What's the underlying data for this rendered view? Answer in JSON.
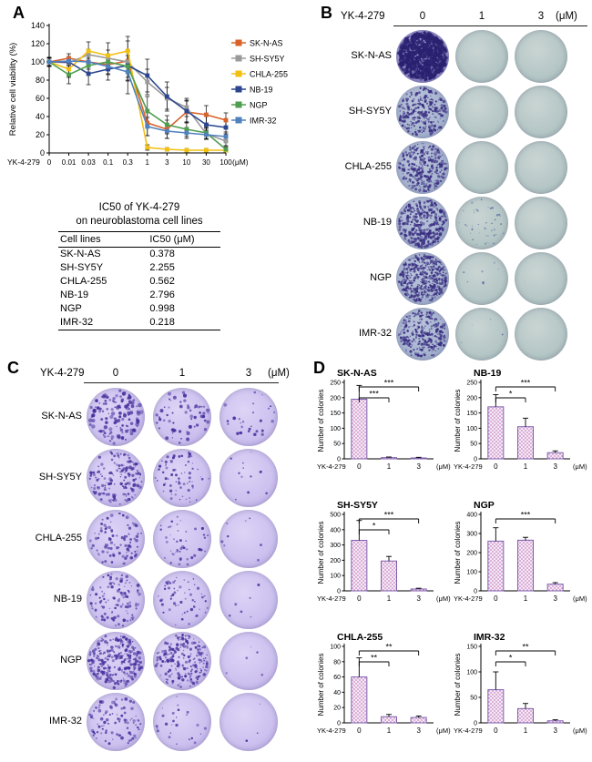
{
  "panels": {
    "A": {
      "label": "A",
      "table": {
        "title_line1": "IC50 of YK-4-279",
        "title_line2": "on neuroblastoma cell lines",
        "col_headers": [
          "Cell lines",
          "IC50 (μM)"
        ],
        "rows": [
          {
            "cell_line": "SK-N-AS",
            "ic50": "0.378"
          },
          {
            "cell_line": "SH-SY5Y",
            "ic50": "2.255"
          },
          {
            "cell_line": "CHLA-255",
            "ic50": "0.562"
          },
          {
            "cell_line": "NB-19",
            "ic50": "2.796"
          },
          {
            "cell_line": "NGP",
            "ic50": "0.998"
          },
          {
            "cell_line": "IMR-32",
            "ic50": "0.218"
          }
        ]
      }
    },
    "B": {
      "label": "B",
      "header": {
        "drug": "YK-4-279",
        "doses": [
          "0",
          "1",
          "3"
        ],
        "unit": "(μM)"
      },
      "rows": [
        {
          "cell_line": "SK-N-AS",
          "plates": [
            {
              "style": "dense_dark",
              "dots": 1100,
              "dot_size": 2.0
            },
            {
              "style": "pale",
              "dots": 0,
              "dot_size": 1
            },
            {
              "style": "pale",
              "dots": 0,
              "dot_size": 1
            }
          ]
        },
        {
          "cell_line": "SH-SY5Y",
          "plates": [
            {
              "style": "stained",
              "dots": 260,
              "dot_size": 1.6
            },
            {
              "style": "pale",
              "dots": 0,
              "dot_size": 1
            },
            {
              "style": "pale",
              "dots": 0,
              "dot_size": 1
            }
          ]
        },
        {
          "cell_line": "CHLA-255",
          "plates": [
            {
              "style": "stained",
              "dots": 300,
              "dot_size": 1.6
            },
            {
              "style": "pale",
              "dots": 0,
              "dot_size": 1
            },
            {
              "style": "pale",
              "dots": 0,
              "dot_size": 1
            }
          ]
        },
        {
          "cell_line": "NB-19",
          "plates": [
            {
              "style": "stained",
              "dots": 340,
              "dot_size": 1.7
            },
            {
              "style": "pale",
              "dots": 45,
              "dot_size": 1.2
            },
            {
              "style": "pale",
              "dots": 0,
              "dot_size": 1
            }
          ]
        },
        {
          "cell_line": "NGP",
          "plates": [
            {
              "style": "stained",
              "dots": 650,
              "dot_size": 1.3
            },
            {
              "style": "pale",
              "dots": 8,
              "dot_size": 1.4
            },
            {
              "style": "pale",
              "dots": 0,
              "dot_size": 1
            }
          ]
        },
        {
          "cell_line": "IMR-32",
          "plates": [
            {
              "style": "stained",
              "dots": 300,
              "dot_size": 1.5
            },
            {
              "style": "pale",
              "dots": 4,
              "dot_size": 1.2
            },
            {
              "style": "pale",
              "dots": 0,
              "dot_size": 1
            }
          ]
        }
      ]
    },
    "C": {
      "label": "C",
      "header": {
        "drug": "YK-4-279",
        "doses": [
          "0",
          "1",
          "3"
        ],
        "unit": "(μM)"
      },
      "rows": [
        {
          "cell_line": "SK-N-AS",
          "plates": [
            {
              "style": "lavender",
              "dots": 130,
              "dot_size": 2.2
            },
            {
              "style": "lavender",
              "dots": 60,
              "dot_size": 2.0
            },
            {
              "style": "lavender",
              "dots": 28,
              "dot_size": 1.8
            }
          ]
        },
        {
          "cell_line": "SH-SY5Y",
          "plates": [
            {
              "style": "lavender",
              "dots": 150,
              "dot_size": 1.8
            },
            {
              "style": "lavender",
              "dots": 70,
              "dot_size": 1.6
            },
            {
              "style": "lavender",
              "dots": 12,
              "dot_size": 1.6
            }
          ]
        },
        {
          "cell_line": "CHLA-255",
          "plates": [
            {
              "style": "lavender",
              "dots": 90,
              "dot_size": 1.8
            },
            {
              "style": "lavender",
              "dots": 45,
              "dot_size": 1.6
            },
            {
              "style": "lavender",
              "dots": 8,
              "dot_size": 1.5
            }
          ]
        },
        {
          "cell_line": "NB-19",
          "plates": [
            {
              "style": "lavender",
              "dots": 110,
              "dot_size": 1.8
            },
            {
              "style": "lavender",
              "dots": 55,
              "dot_size": 1.6
            },
            {
              "style": "lavender",
              "dots": 6,
              "dot_size": 1.5
            }
          ]
        },
        {
          "cell_line": "NGP",
          "plates": [
            {
              "style": "lavender",
              "dots": 260,
              "dot_size": 1.8
            },
            {
              "style": "lavender",
              "dots": 210,
              "dot_size": 1.7
            },
            {
              "style": "lavender",
              "dots": 5,
              "dot_size": 1.4
            }
          ]
        },
        {
          "cell_line": "IMR-32",
          "plates": [
            {
              "style": "lavender",
              "dots": 90,
              "dot_size": 1.8
            },
            {
              "style": "lavender",
              "dots": 25,
              "dot_size": 1.6
            },
            {
              "style": "lavender",
              "dots": 3,
              "dot_size": 1.4
            }
          ]
        }
      ]
    },
    "D": {
      "label": "D"
    }
  },
  "plate_styles": {
    "dense_dark": {
      "c1": "#aba7dd",
      "c2": "#938ec9",
      "c3": "#7b75b5",
      "dot": "#2a2170"
    },
    "stained": {
      "c1": "#bac5db",
      "c2": "#a7b4d0",
      "c3": "#8f9dbf",
      "dot": "#372b80"
    },
    "pale": {
      "c1": "#c9d5d3",
      "c2": "#b5c6c6",
      "c3": "#9eb2b4",
      "dot": "#5b6fa5"
    },
    "lavender": {
      "c1": "#ddd4f6",
      "c2": "#ccc0ef",
      "c3": "#b2a0e0",
      "dot": "#46309c"
    }
  },
  "chart_data": [
    {
      "type": "line",
      "panel": "A",
      "title": "",
      "xlabel": "YK-4-279 (μM)",
      "x_drug_label": "YK-4-279",
      "x_unit": "(μM)",
      "ylabel": "Relative cell viability (%)",
      "x_tick_labels": [
        "0",
        "0.01",
        "0.03",
        "0.1",
        "0.3",
        "1",
        "3",
        "10",
        "30",
        "100"
      ],
      "ylim": [
        0,
        140
      ],
      "yticks": [
        0,
        20,
        40,
        60,
        80,
        100,
        120,
        140
      ],
      "legend_position": "right",
      "series": [
        {
          "name": "SK-N-AS",
          "color": "#d9622b",
          "values": [
            100,
            104,
            100,
            97,
            101,
            33,
            26,
            45,
            42,
            36
          ],
          "errors": [
            4,
            5,
            8,
            10,
            22,
            14,
            10,
            12,
            10,
            8
          ]
        },
        {
          "name": "SH-SY5Y",
          "color": "#9a9a9a",
          "values": [
            100,
            99,
            108,
            104,
            100,
            78,
            60,
            50,
            21,
            13
          ],
          "errors": [
            4,
            5,
            6,
            9,
            12,
            14,
            12,
            10,
            6,
            5
          ]
        },
        {
          "name": "CHLA-255",
          "color": "#f2c012",
          "values": [
            100,
            92,
            112,
            107,
            112,
            6,
            4,
            3,
            3,
            3
          ],
          "errors": [
            5,
            9,
            10,
            14,
            16,
            3,
            2,
            2,
            2,
            2
          ]
        },
        {
          "name": "NB-19",
          "color": "#2b4590",
          "values": [
            100,
            100,
            87,
            92,
            96,
            85,
            62,
            46,
            31,
            28
          ],
          "errors": [
            5,
            6,
            12,
            12,
            16,
            18,
            16,
            12,
            9,
            7
          ]
        },
        {
          "name": "NGP",
          "color": "#4f9d4f",
          "values": [
            100,
            86,
            96,
            100,
            95,
            46,
            31,
            26,
            22,
            4
          ],
          "errors": [
            4,
            10,
            8,
            8,
            12,
            16,
            10,
            8,
            6,
            3
          ]
        },
        {
          "name": "IMR-32",
          "color": "#4f81bd",
          "values": [
            100,
            101,
            100,
            95,
            89,
            29,
            24,
            22,
            20,
            18
          ],
          "errors": [
            5,
            5,
            6,
            9,
            24,
            10,
            8,
            6,
            5,
            5
          ]
        }
      ]
    },
    {
      "type": "bar",
      "panel": "D",
      "title": "SK-N-AS",
      "ylabel": "Number of colonies",
      "categories": [
        "0",
        "1",
        "3"
      ],
      "x_drug_label": "YK-4-279",
      "x_unit": "(μM)",
      "values": [
        195,
        4,
        3
      ],
      "errors": [
        45,
        2,
        2
      ],
      "ylim": [
        0,
        250
      ],
      "yticks": [
        0,
        50,
        100,
        150,
        200,
        250
      ],
      "sig": [
        {
          "pair": [
            0,
            1
          ],
          "label": "***"
        },
        {
          "pair": [
            0,
            2
          ],
          "label": "***"
        }
      ]
    },
    {
      "type": "bar",
      "panel": "D",
      "title": "NB-19",
      "ylabel": "Number of colonies",
      "categories": [
        "0",
        "1",
        "3"
      ],
      "x_drug_label": "YK-4-279",
      "x_unit": "(μM)",
      "values": [
        170,
        105,
        20
      ],
      "errors": [
        40,
        28,
        6
      ],
      "ylim": [
        0,
        250
      ],
      "yticks": [
        0,
        50,
        100,
        150,
        200,
        250
      ],
      "sig": [
        {
          "pair": [
            0,
            1
          ],
          "label": "*"
        },
        {
          "pair": [
            0,
            2
          ],
          "label": "***"
        }
      ]
    },
    {
      "type": "bar",
      "panel": "D",
      "title": "SH-SY5Y",
      "ylabel": "Number of colonies",
      "categories": [
        "0",
        "1",
        "3"
      ],
      "x_drug_label": "YK-4-279",
      "x_unit": "(μM)",
      "values": [
        330,
        195,
        12
      ],
      "errors": [
        130,
        30,
        5
      ],
      "ylim": [
        0,
        500
      ],
      "yticks": [
        0,
        100,
        200,
        300,
        400,
        500
      ],
      "sig": [
        {
          "pair": [
            0,
            1
          ],
          "label": "*"
        },
        {
          "pair": [
            0,
            2
          ],
          "label": "***"
        }
      ]
    },
    {
      "type": "bar",
      "panel": "D",
      "title": "NGP",
      "ylabel": "Number of colonies",
      "categories": [
        "0",
        "1",
        "3"
      ],
      "x_drug_label": "YK-4-279",
      "x_unit": "(μM)",
      "values": [
        260,
        265,
        35
      ],
      "errors": [
        70,
        15,
        8
      ],
      "ylim": [
        0,
        400
      ],
      "yticks": [
        0,
        100,
        200,
        300,
        400
      ],
      "sig": [
        {
          "pair": [
            0,
            2
          ],
          "label": "***"
        }
      ]
    },
    {
      "type": "bar",
      "panel": "D",
      "title": "CHLA-255",
      "ylabel": "Number of colonies",
      "categories": [
        "0",
        "1",
        "3"
      ],
      "x_drug_label": "YK-4-279",
      "x_unit": "(μM)",
      "values": [
        60,
        8,
        7
      ],
      "errors": [
        25,
        3,
        2
      ],
      "ylim": [
        0,
        100
      ],
      "yticks": [
        0,
        20,
        40,
        60,
        80,
        100
      ],
      "sig": [
        {
          "pair": [
            0,
            1
          ],
          "label": "**"
        },
        {
          "pair": [
            0,
            2
          ],
          "label": "**"
        }
      ]
    },
    {
      "type": "bar",
      "panel": "D",
      "title": "IMR-32",
      "ylabel": "Number of colonies",
      "categories": [
        "0",
        "1",
        "3"
      ],
      "x_drug_label": "YK-4-279",
      "x_unit": "(μM)",
      "values": [
        65,
        28,
        4
      ],
      "errors": [
        35,
        10,
        2
      ],
      "ylim": [
        0,
        150
      ],
      "yticks": [
        0,
        50,
        100,
        150
      ],
      "sig": [
        {
          "pair": [
            0,
            1
          ],
          "label": "*"
        },
        {
          "pair": [
            0,
            2
          ],
          "label": "**"
        }
      ]
    }
  ]
}
